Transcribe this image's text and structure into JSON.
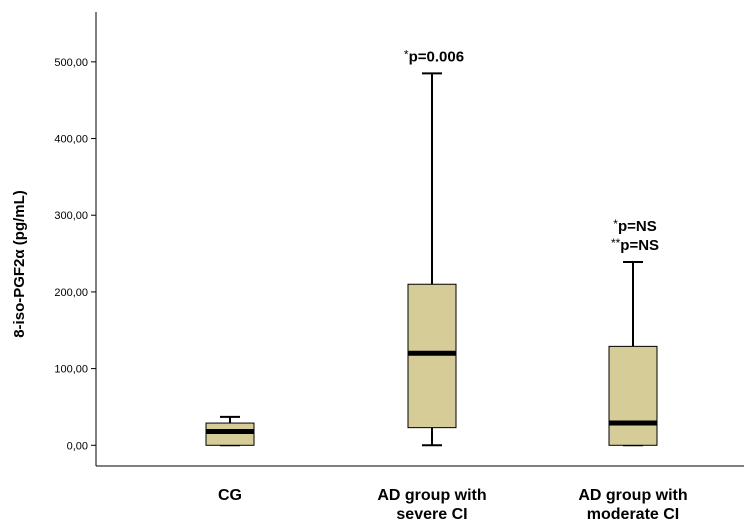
{
  "colors": {
    "box_fill": "#d5cc98",
    "stroke": "#000000",
    "background": "#ffffff"
  },
  "chart_data": {
    "type": "box",
    "title": "",
    "xlabel": "",
    "ylabel": "8-iso-PGF2α (pg/mL)",
    "ylim": [
      -27,
      565
    ],
    "yticks": [
      0,
      100,
      200,
      300,
      400,
      500
    ],
    "ytick_labels": [
      "0,00",
      "100,00",
      "200,00",
      "300,00",
      "400,00",
      "500,00"
    ],
    "grid": false,
    "categories": [
      {
        "lines": [
          "CG"
        ]
      },
      {
        "lines": [
          "AD group with",
          "severe CI"
        ]
      },
      {
        "lines": [
          "AD group with",
          "moderate CI"
        ]
      }
    ],
    "boxes": [
      {
        "min": 0,
        "q1": 0,
        "median": 18,
        "q3": 29,
        "max": 37
      },
      {
        "min": 0,
        "q1": 23,
        "median": 120,
        "q3": 210,
        "max": 485
      },
      {
        "min": 0,
        "q1": 0,
        "median": 29,
        "q3": 129,
        "max": 239
      }
    ],
    "annotations": [
      {
        "category": 1,
        "lines": [
          {
            "star": "*",
            "text": "p=0.006"
          }
        ]
      },
      {
        "category": 2,
        "lines": [
          {
            "star": "*",
            "text": "p=NS"
          },
          {
            "star": "**",
            "text": "p=NS"
          }
        ]
      }
    ]
  }
}
